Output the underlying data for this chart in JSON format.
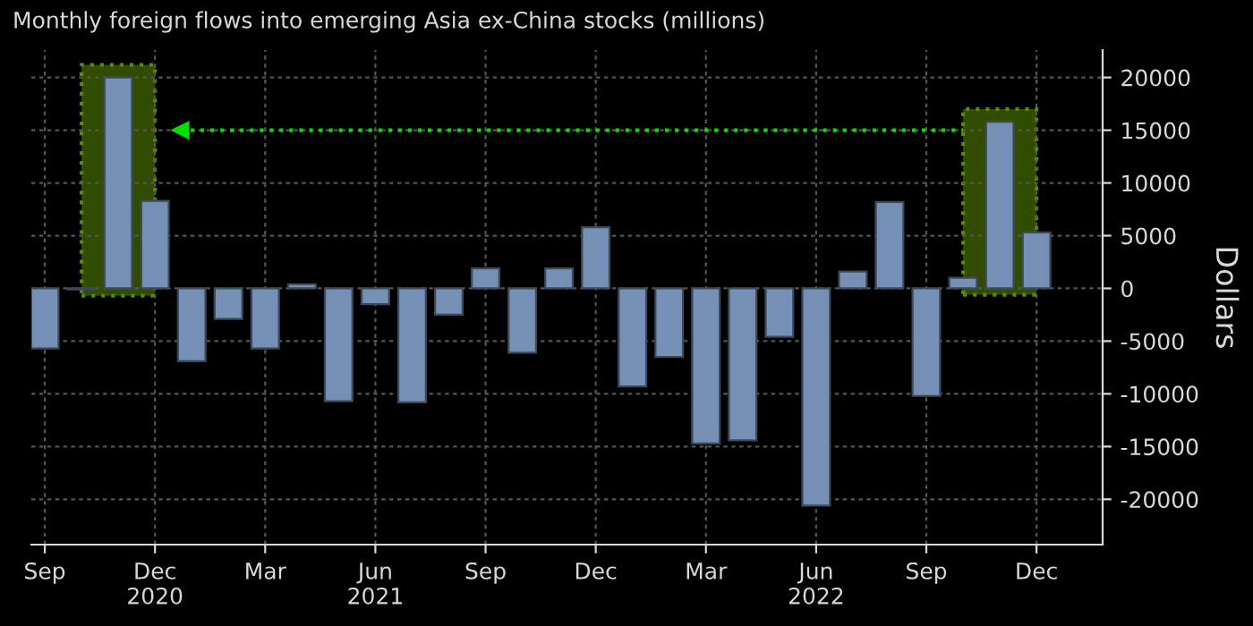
{
  "chart_data": {
    "type": "bar",
    "title": "Monthly foreign flows into emerging Asia ex-China stocks (millions)",
    "ylabel": "Dollars",
    "x": [
      "2020-09",
      "2020-10",
      "2020-11",
      "2020-12",
      "2021-01",
      "2021-02",
      "2021-03",
      "2021-04",
      "2021-05",
      "2021-06",
      "2021-07",
      "2021-08",
      "2021-09",
      "2021-10",
      "2021-11",
      "2021-12",
      "2022-01",
      "2022-02",
      "2022-03",
      "2022-04",
      "2022-05",
      "2022-06",
      "2022-07",
      "2022-08",
      "2022-09",
      "2022-10",
      "2022-11",
      "2022-12"
    ],
    "series": [
      {
        "color": "#7590b4",
        "values": [
          -5700,
          -100,
          20000,
          8300,
          -6900,
          -2900,
          -5700,
          400,
          -10700,
          -1500,
          -10800,
          -2500,
          1900,
          -6100,
          1900,
          5800,
          -9300,
          -6500,
          -14700,
          -14400,
          -4600,
          -20600,
          1600,
          8200,
          -10200,
          1000,
          15800,
          5300
        ]
      }
    ],
    "xlim": [
      "2020-08-20",
      "2023-01-25"
    ],
    "xticks": [
      {
        "value": "2020-09",
        "label": "Sep"
      },
      {
        "value": "2020-12",
        "label": "Dec\n2020"
      },
      {
        "value": "2021-03",
        "label": "Mar"
      },
      {
        "value": "2021-06",
        "label": "Jun\n2021"
      },
      {
        "value": "2021-09",
        "label": "Sep"
      },
      {
        "value": "2021-12",
        "label": "Dec"
      },
      {
        "value": "2022-03",
        "label": "Mar"
      },
      {
        "value": "2022-06",
        "label": "Jun\n2022"
      },
      {
        "value": "2022-09",
        "label": "Sep"
      },
      {
        "value": "2022-12",
        "label": "Dec"
      }
    ],
    "ylim": [
      -24300,
      22600
    ],
    "yticks": [
      -20000,
      -15000,
      -10000,
      -5000,
      0,
      5000,
      10000,
      15000,
      20000
    ],
    "grid": true,
    "bands": [
      {
        "axis": "x",
        "from": "2020-10",
        "to": "2020-12",
        "color": "#5a8a00"
      },
      {
        "axis": "x",
        "from": "2022-10",
        "to": "2022-12",
        "color": "#5a8a00"
      }
    ],
    "ref_lines": [
      {
        "axis": "y",
        "value": 15000,
        "color": "#00e000",
        "line_style": "dotted"
      }
    ]
  }
}
